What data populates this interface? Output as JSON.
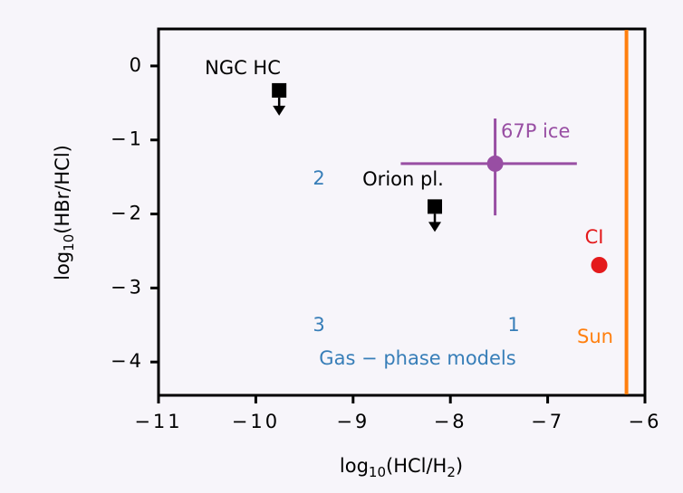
{
  "chart_data": {
    "type": "scatter",
    "xlabel": [
      "log",
      "10",
      "(HCl/H",
      "2",
      ")"
    ],
    "ylabel": [
      "log",
      "10",
      "(HBr/HCl)"
    ],
    "xlim": [
      -11,
      -6
    ],
    "ylim": [
      -4.45,
      0.5
    ],
    "xticks": [
      {
        "value": -11,
        "label": "−11"
      },
      {
        "value": -10,
        "label": "−10"
      },
      {
        "value": -9,
        "label": "−9"
      },
      {
        "value": -8,
        "label": "−8"
      },
      {
        "value": -7,
        "label": "−7"
      },
      {
        "value": -6,
        "label": "−6"
      }
    ],
    "yticks": [
      0,
      {
        "value": -1,
        "label": "−1"
      },
      {
        "value": -2,
        "label": "−2"
      },
      {
        "value": -3,
        "label": "−3"
      },
      {
        "value": -4,
        "label": "−4"
      }
    ],
    "series": [
      {
        "name": "NGC HC",
        "color": "#000000",
        "marker": "square",
        "upper_limit": true,
        "x": [
          -9.76
        ],
        "values": [
          -0.33
        ]
      },
      {
        "name": "Orion pl.",
        "color": "#000000",
        "marker": "square",
        "upper_limit": true,
        "x": [
          -8.16
        ],
        "values": [
          -1.9
        ]
      },
      {
        "name": "67P ice",
        "color": "#984ea3",
        "marker": "circle",
        "upper_limit": false,
        "x": [
          -7.54
        ],
        "values": [
          -1.32
        ],
        "xerr": [
          [
            0.97,
            0.84
          ]
        ],
        "yerr": [
          [
            0.7,
            0.61
          ]
        ]
      },
      {
        "name": "CI",
        "color": "#e41a1c",
        "marker": "circle",
        "upper_limit": false,
        "x": [
          -6.47
        ],
        "values": [
          -2.69
        ]
      }
    ],
    "vlines": [
      {
        "name": "Sun",
        "color": "#ff7f0e",
        "x": -6.19
      }
    ],
    "annotations": [
      {
        "text": "2",
        "color": "#377eb8"
      },
      {
        "text": "3",
        "color": "#377eb8"
      },
      {
        "text": "1",
        "color": "#377eb8"
      },
      {
        "text": "Gas − phase models",
        "color": "#377eb8"
      }
    ]
  }
}
